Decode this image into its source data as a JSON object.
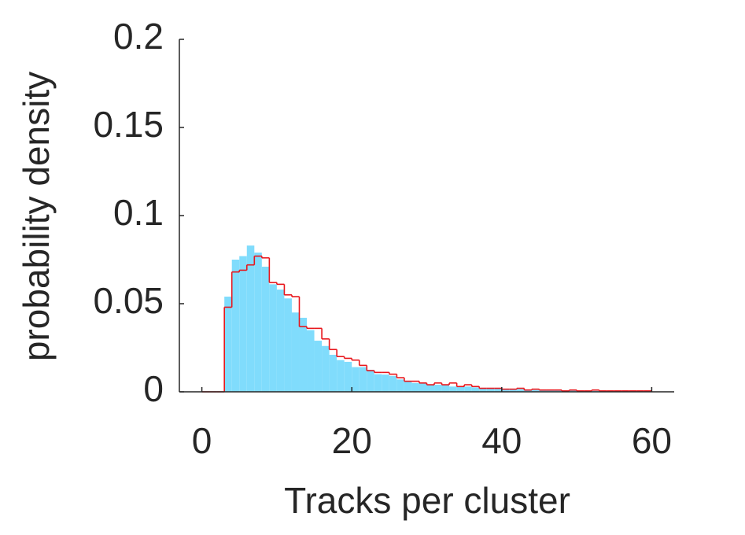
{
  "chart_data": {
    "type": "histogram",
    "x_label": "Tracks per cluster",
    "y_label": "probability density",
    "bins": [
      0,
      1,
      2,
      3,
      4,
      5,
      6,
      7,
      8,
      9,
      10,
      11,
      12,
      13,
      14,
      15,
      16,
      17,
      18,
      19,
      20,
      21,
      22,
      23,
      24,
      25,
      26,
      27,
      28,
      29,
      30,
      31,
      32,
      33,
      34,
      35,
      36,
      37,
      38,
      39,
      40,
      41,
      42,
      43,
      44,
      45,
      46,
      47,
      48,
      49,
      50,
      51,
      52,
      53,
      54,
      55,
      56,
      57,
      58,
      59,
      60
    ],
    "series": [
      {
        "style": "bar",
        "color": "#80dcfc",
        "values": [
          0,
          0,
          0,
          0.054,
          0.075,
          0.077,
          0.083,
          0.079,
          0.071,
          0.061,
          0.058,
          0.053,
          0.045,
          0.042,
          0.035,
          0.029,
          0.026,
          0.021,
          0.018,
          0.017,
          0.014,
          0.014,
          0.0125,
          0.01,
          0.0098,
          0.009,
          0.007,
          0.006,
          0.005,
          0.005,
          0.004,
          0.004,
          0.004,
          0.003,
          0.003,
          0.003,
          0.0025,
          0.002,
          0.002,
          0.002,
          0.0015,
          0.0015,
          0.0015,
          0.001,
          0.001,
          0.001,
          0.001,
          0.0008,
          0.0008,
          0.0007,
          0.0006,
          0.0006,
          0.0005,
          0.0005,
          0.0004,
          0.0004,
          0.0003,
          0.0003,
          0.0003,
          0.0002
        ]
      },
      {
        "style": "step",
        "color": "#e8161c",
        "values": [
          0,
          0,
          0,
          0.048,
          0.068,
          0.069,
          0.072,
          0.077,
          0.076,
          0.062,
          0.061,
          0.055,
          0.054,
          0.037,
          0.036,
          0.036,
          0.03,
          0.024,
          0.02,
          0.019,
          0.018,
          0.015,
          0.012,
          0.011,
          0.011,
          0.01,
          0.008,
          0.006,
          0.006,
          0.005,
          0.004,
          0.005,
          0.004,
          0.005,
          0.003,
          0.004,
          0.003,
          0.002,
          0.002,
          0.002,
          0.0015,
          0.0015,
          0.002,
          0.001,
          0.0015,
          0.001,
          0.001,
          0.001,
          0.0005,
          0.001,
          0.0005,
          0.0005,
          0.001,
          0.0005,
          0.0005,
          0.0005,
          0.0005,
          0.0005,
          0.0005,
          0.0005
        ]
      }
    ],
    "xlim": [
      -3,
      63
    ],
    "xticks": [
      0,
      20,
      40,
      60
    ],
    "ylim": [
      0,
      0.2
    ],
    "yticks": [
      0,
      0.05,
      0.1,
      0.15,
      0.2
    ]
  }
}
